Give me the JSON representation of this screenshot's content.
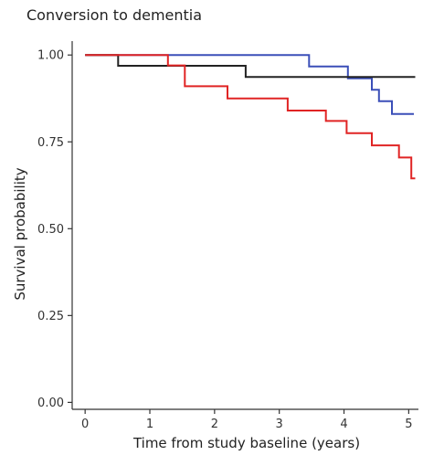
{
  "chart_data": {
    "type": "line",
    "step": true,
    "title": "Conversion to dementia",
    "xlabel": "Time from study baseline (years)",
    "ylabel": "Survival probability",
    "xlim": [
      -0.2,
      5.15
    ],
    "ylim": [
      -0.02,
      1.04
    ],
    "x_ticks": [
      0,
      1,
      2,
      3,
      4,
      5
    ],
    "x_tick_labels": [
      "0",
      "1",
      "2",
      "3",
      "4",
      "5"
    ],
    "y_ticks": [
      0.0,
      0.25,
      0.5,
      0.75,
      1.0
    ],
    "y_tick_labels": [
      "0.00",
      "0.25",
      "0.50",
      "0.75",
      "1.00"
    ],
    "grid": false,
    "series": [
      {
        "color": "#3b4fb8",
        "x": [
          0.0,
          3.46,
          4.06,
          4.43,
          4.54,
          4.74,
          5.08
        ],
        "y": [
          1.0,
          0.967,
          0.933,
          0.9,
          0.867,
          0.83,
          0.83
        ]
      },
      {
        "color": "#222222",
        "x": [
          0.0,
          0.51,
          2.48,
          5.1
        ],
        "y": [
          1.0,
          0.969,
          0.937,
          0.937
        ]
      },
      {
        "color": "#e02424",
        "x": [
          0.0,
          1.28,
          1.54,
          2.2,
          3.13,
          3.72,
          4.04,
          4.43,
          4.85,
          5.04,
          5.1
        ],
        "y": [
          1.0,
          0.97,
          0.91,
          0.875,
          0.84,
          0.81,
          0.775,
          0.74,
          0.705,
          0.645,
          0.645
        ]
      }
    ]
  }
}
